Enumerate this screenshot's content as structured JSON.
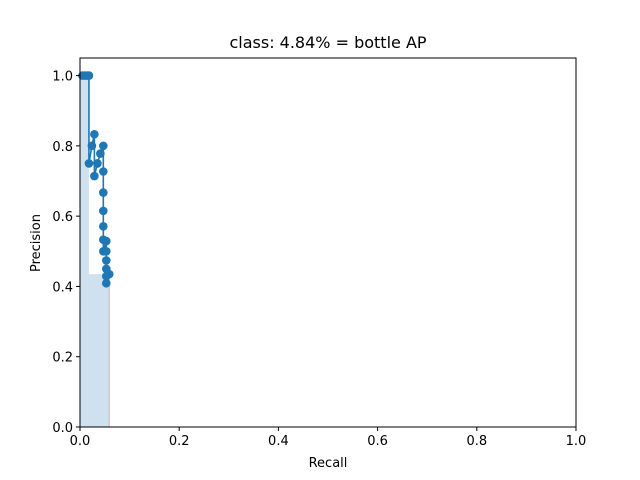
{
  "chart_data": {
    "type": "line",
    "title": "class: 4.84% = bottle AP",
    "xlabel": "Recall",
    "ylabel": "Precision",
    "xlim": [
      0.0,
      1.0
    ],
    "ylim": [
      0.0,
      1.05
    ],
    "xticks": [
      "0.0",
      "0.2",
      "0.4",
      "0.6",
      "0.8",
      "1.0"
    ],
    "yticks": [
      "0.0",
      "0.2",
      "0.4",
      "0.6",
      "0.8",
      "1.0"
    ],
    "grid": false,
    "colors": {
      "line": "#1f77b4",
      "marker": "#1f77b4",
      "area_fill": "#cfe0ee",
      "area_edge": "#f4a6a6"
    },
    "series": [
      {
        "x": [
          0.005,
          0.01,
          0.015,
          0.018,
          0.018,
          0.024,
          0.029,
          0.029,
          0.035,
          0.035,
          0.041,
          0.047,
          0.047,
          0.047,
          0.047,
          0.047,
          0.047,
          0.047,
          0.053,
          0.053,
          0.053,
          0.053,
          0.053,
          0.053,
          0.059
        ],
        "y": [
          1.0,
          1.0,
          1.0,
          1.0,
          0.75,
          0.8,
          0.833,
          0.714,
          0.75,
          0.75,
          0.778,
          0.8,
          0.727,
          0.667,
          0.615,
          0.571,
          0.533,
          0.5,
          0.529,
          0.5,
          0.474,
          0.45,
          0.429,
          0.409,
          0.435
        ]
      }
    ],
    "area": {
      "x": [
        0.0,
        0.018,
        0.018,
        0.059,
        0.059
      ],
      "y": [
        1.0,
        1.0,
        0.435,
        0.435,
        0.0
      ]
    }
  }
}
